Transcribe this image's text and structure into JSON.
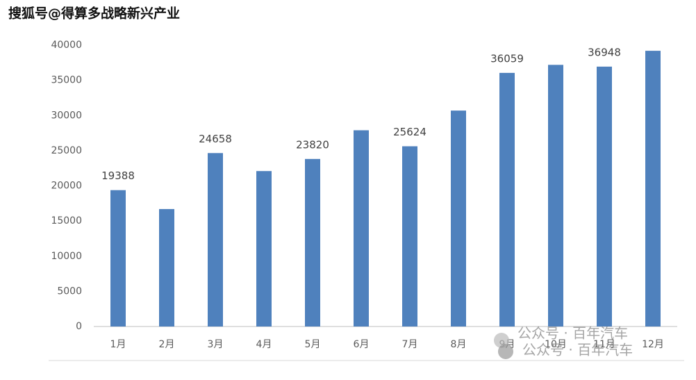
{
  "chart_data": {
    "type": "bar",
    "categories": [
      "1月",
      "2月",
      "3月",
      "4月",
      "5月",
      "6月",
      "7月",
      "8月",
      "9月",
      "10月",
      "11月",
      "12月"
    ],
    "values": [
      19388,
      16700,
      24658,
      22100,
      23820,
      27900,
      25624,
      30700,
      36059,
      37200,
      36948,
      39200
    ],
    "show_value_labels": [
      true,
      false,
      true,
      false,
      true,
      false,
      true,
      false,
      true,
      false,
      true,
      false
    ],
    "color": "#4f81bd",
    "ylim": [
      0,
      40000
    ],
    "yticks": [
      0,
      5000,
      10000,
      15000,
      20000,
      25000,
      30000,
      35000,
      40000
    ],
    "grid": false
  },
  "watermarks": [
    "搜狐号@得算多战略新兴产业",
    "公众号 · 百年汽车"
  ]
}
